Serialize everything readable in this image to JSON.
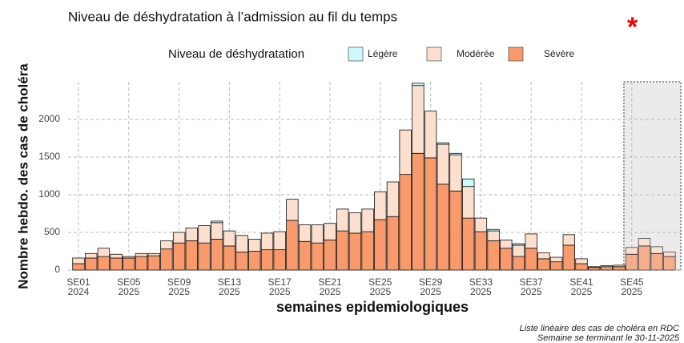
{
  "chart_data": {
    "type": "stacked_bar",
    "title": "Niveau de déshydratation à l’admission au fil du temps",
    "marker": "*",
    "legend_title": "Niveau de déshydratation",
    "legend_position": "top",
    "y_label": "Nombre hebdo. des cas de choléra",
    "x_label": "semaines epidemiologiques",
    "caption": [
      "Liste linéaire des cas de choléra en RDC",
      "Semaine se terminant le 30-11-2025"
    ],
    "categories": [
      "SE01\n2024",
      null,
      null,
      null,
      "SE05\n2025",
      null,
      null,
      null,
      "SE09\n2025",
      null,
      null,
      null,
      "SE13\n2025",
      null,
      null,
      null,
      "SE17\n2025",
      null,
      null,
      null,
      "SE21\n2025",
      null,
      null,
      null,
      "SE25\n2025",
      null,
      null,
      null,
      "SE29\n2025",
      null,
      null,
      null,
      "SE33\n2025",
      null,
      null,
      null,
      "SE37\n2025",
      null,
      null,
      null,
      "SE41\n2025",
      null,
      null,
      null,
      "SE45\n2025",
      null,
      null,
      null
    ],
    "series": [
      {
        "name": "Sévère",
        "color": "#f99a6c",
        "values": [
          85,
          160,
          180,
          160,
          160,
          180,
          190,
          280,
          360,
          390,
          360,
          410,
          320,
          240,
          250,
          270,
          270,
          660,
          380,
          360,
          400,
          520,
          490,
          510,
          670,
          710,
          1270,
          1550,
          1490,
          1140,
          1050,
          690,
          510,
          390,
          290,
          180,
          290,
          150,
          110,
          330,
          85,
          35,
          45,
          45,
          210,
          320,
          220,
          180
        ]
      },
      {
        "name": "Modérée",
        "color": "#fbe0cf",
        "values": [
          75,
          60,
          110,
          50,
          20,
          40,
          30,
          110,
          140,
          170,
          230,
          220,
          200,
          220,
          160,
          220,
          240,
          280,
          220,
          240,
          220,
          290,
          270,
          300,
          370,
          460,
          590,
          900,
          620,
          530,
          480,
          420,
          180,
          130,
          110,
          150,
          190,
          80,
          60,
          140,
          65,
          10,
          15,
          20,
          90,
          100,
          90,
          60
        ]
      },
      {
        "name": "Légère",
        "color": "#ccfafc",
        "values": [
          0,
          0,
          0,
          0,
          0,
          0,
          0,
          0,
          0,
          0,
          0,
          20,
          0,
          0,
          0,
          0,
          0,
          0,
          0,
          0,
          0,
          0,
          0,
          0,
          0,
          0,
          0,
          30,
          0,
          20,
          20,
          100,
          0,
          20,
          0,
          20,
          0,
          0,
          0,
          0,
          0,
          0,
          0,
          0,
          0,
          0,
          0,
          0
        ]
      }
    ],
    "ylim": [
      0,
      2500
    ],
    "yticks": [
      0,
      500,
      1000,
      1500,
      2000
    ],
    "grid": true
  }
}
